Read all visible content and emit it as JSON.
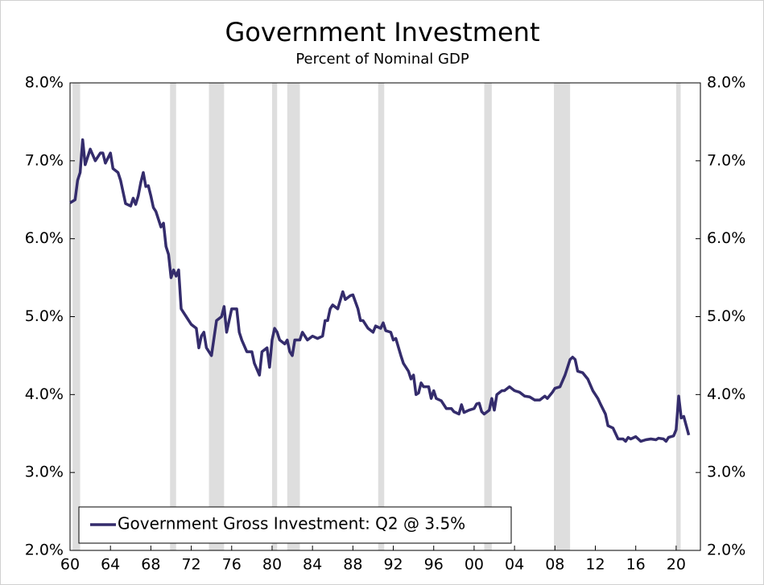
{
  "chart_data": {
    "type": "line",
    "title": "Government Investment",
    "subtitle": "Percent of Nominal GDP",
    "xlim": [
      1960,
      2022.4
    ],
    "xticks": [
      {
        "value": 1960,
        "label": "60"
      },
      {
        "value": 1964,
        "label": "64"
      },
      {
        "value": 1968,
        "label": "68"
      },
      {
        "value": 1972,
        "label": "72"
      },
      {
        "value": 1976,
        "label": "76"
      },
      {
        "value": 1980,
        "label": "80"
      },
      {
        "value": 1984,
        "label": "84"
      },
      {
        "value": 1988,
        "label": "88"
      },
      {
        "value": 1992,
        "label": "92"
      },
      {
        "value": 1996,
        "label": "96"
      },
      {
        "value": 2000,
        "label": "00"
      },
      {
        "value": 2004,
        "label": "04"
      },
      {
        "value": 2008,
        "label": "08"
      },
      {
        "value": 2012,
        "label": "12"
      },
      {
        "value": 2016,
        "label": "16"
      },
      {
        "value": 2020,
        "label": "20"
      }
    ],
    "ylim": [
      2,
      8
    ],
    "yticks": [
      {
        "value": 2,
        "label": "2.0%"
      },
      {
        "value": 3,
        "label": "3.0%"
      },
      {
        "value": 4,
        "label": "4.0%"
      },
      {
        "value": 5,
        "label": "5.0%"
      },
      {
        "value": 6,
        "label": "6.0%"
      },
      {
        "value": 7,
        "label": "7.0%"
      },
      {
        "value": 8,
        "label": "8.0%"
      }
    ],
    "y2lim": [
      2,
      8
    ],
    "y2ticks": [
      {
        "value": 2,
        "label": "2.0%"
      },
      {
        "value": 3,
        "label": "3.0%"
      },
      {
        "value": 4,
        "label": "4.0%"
      },
      {
        "value": 5,
        "label": "5.0%"
      },
      {
        "value": 6,
        "label": "6.0%"
      },
      {
        "value": 7,
        "label": "7.0%"
      },
      {
        "value": 8,
        "label": "8.0%"
      }
    ],
    "shaded_periods": [
      [
        1960.25,
        1961.0
      ],
      [
        1969.9,
        1970.5
      ],
      [
        1973.75,
        1975.25
      ],
      [
        1980.0,
        1980.5
      ],
      [
        1981.5,
        1982.75
      ],
      [
        1990.5,
        1991.1
      ],
      [
        2001.0,
        2001.75
      ],
      [
        2007.9,
        2009.5
      ],
      [
        2020.0,
        2020.45
      ]
    ],
    "shade_color": "#dedede",
    "legend": "bottom-left",
    "series": [
      {
        "name": "Government Gross Investment: Q2 @ 3.5%",
        "color": "#342c6c",
        "x": [
          1960.0,
          1960.5,
          1960.75,
          1961.0,
          1961.25,
          1961.5,
          1962.0,
          1962.5,
          1963.0,
          1963.25,
          1963.5,
          1964.0,
          1964.25,
          1964.75,
          1965.0,
          1965.5,
          1966.0,
          1966.25,
          1966.5,
          1966.75,
          1967.0,
          1967.25,
          1967.5,
          1967.75,
          1968.0,
          1968.25,
          1968.5,
          1969.0,
          1969.25,
          1969.5,
          1969.75,
          1970.0,
          1970.25,
          1970.5,
          1970.75,
          1971.0,
          1971.5,
          1972.0,
          1972.5,
          1972.75,
          1973.0,
          1973.25,
          1973.5,
          1974.0,
          1974.5,
          1975.0,
          1975.25,
          1975.5,
          1976.0,
          1976.5,
          1976.75,
          1977.0,
          1977.5,
          1978.0,
          1978.25,
          1978.75,
          1979.0,
          1979.5,
          1979.75,
          1980.0,
          1980.25,
          1980.5,
          1980.75,
          1981.25,
          1981.5,
          1981.75,
          1982.0,
          1982.25,
          1982.75,
          1983.0,
          1983.5,
          1984.0,
          1984.5,
          1985.0,
          1985.25,
          1985.5,
          1985.75,
          1986.0,
          1986.5,
          1987.0,
          1987.25,
          1987.75,
          1988.0,
          1988.5,
          1988.75,
          1989.0,
          1989.5,
          1990.0,
          1990.25,
          1990.75,
          1991.0,
          1991.25,
          1991.75,
          1992.0,
          1992.25,
          1992.75,
          1993.0,
          1993.5,
          1993.75,
          1994.0,
          1994.25,
          1994.5,
          1994.75,
          1995.0,
          1995.5,
          1995.75,
          1996.0,
          1996.25,
          1996.75,
          1997.25,
          1997.75,
          1998.0,
          1998.5,
          1998.75,
          1999.0,
          1999.5,
          2000.0,
          2000.25,
          2000.5,
          2000.75,
          2001.0,
          2001.5,
          2001.75,
          2002.0,
          2002.25,
          2002.75,
          2003.0,
          2003.5,
          2004.0,
          2004.5,
          2005.0,
          2005.5,
          2006.0,
          2006.5,
          2007.0,
          2007.25,
          2007.75,
          2008.0,
          2008.5,
          2009.0,
          2009.5,
          2009.75,
          2010.0,
          2010.25,
          2010.75,
          2011.25,
          2011.75,
          2012.25,
          2012.5,
          2013.0,
          2013.25,
          2013.75,
          2014.0,
          2014.25,
          2014.75,
          2015.0,
          2015.25,
          2015.5,
          2016.0,
          2016.5,
          2017.0,
          2017.5,
          2018.0,
          2018.25,
          2018.75,
          2019.0,
          2019.25,
          2019.75,
          2020.0,
          2020.25,
          2020.5,
          2020.75,
          2021.0,
          2021.25
        ],
        "values": [
          6.46,
          6.5,
          6.75,
          6.85,
          7.27,
          6.95,
          7.15,
          7.0,
          7.1,
          7.1,
          6.97,
          7.1,
          6.9,
          6.85,
          6.75,
          6.45,
          6.42,
          6.52,
          6.44,
          6.55,
          6.72,
          6.85,
          6.67,
          6.68,
          6.55,
          6.4,
          6.35,
          6.15,
          6.2,
          5.9,
          5.8,
          5.5,
          5.6,
          5.52,
          5.6,
          5.1,
          5.0,
          4.9,
          4.85,
          4.6,
          4.75,
          4.8,
          4.6,
          4.5,
          4.95,
          5.0,
          5.13,
          4.8,
          5.1,
          5.1,
          4.8,
          4.7,
          4.55,
          4.55,
          4.4,
          4.25,
          4.55,
          4.6,
          4.35,
          4.7,
          4.85,
          4.8,
          4.7,
          4.65,
          4.7,
          4.55,
          4.5,
          4.7,
          4.7,
          4.8,
          4.7,
          4.75,
          4.72,
          4.75,
          4.95,
          4.95,
          5.1,
          5.15,
          5.1,
          5.32,
          5.22,
          5.27,
          5.28,
          5.1,
          4.95,
          4.95,
          4.85,
          4.8,
          4.88,
          4.85,
          4.92,
          4.82,
          4.8,
          4.7,
          4.72,
          4.5,
          4.4,
          4.3,
          4.2,
          4.25,
          4.0,
          4.02,
          4.15,
          4.1,
          4.1,
          3.95,
          4.05,
          3.95,
          3.92,
          3.82,
          3.82,
          3.78,
          3.75,
          3.87,
          3.77,
          3.8,
          3.82,
          3.88,
          3.89,
          3.78,
          3.75,
          3.8,
          3.95,
          3.8,
          4.0,
          4.05,
          4.05,
          4.1,
          4.05,
          4.03,
          3.98,
          3.97,
          3.93,
          3.93,
          3.98,
          3.95,
          4.03,
          4.08,
          4.1,
          4.25,
          4.45,
          4.48,
          4.45,
          4.3,
          4.28,
          4.2,
          4.05,
          3.95,
          3.88,
          3.75,
          3.6,
          3.57,
          3.5,
          3.43,
          3.43,
          3.4,
          3.45,
          3.43,
          3.46,
          3.4,
          3.42,
          3.43,
          3.42,
          3.44,
          3.43,
          3.4,
          3.45,
          3.47,
          3.55,
          3.98,
          3.7,
          3.72,
          3.6,
          3.48
        ]
      }
    ]
  }
}
